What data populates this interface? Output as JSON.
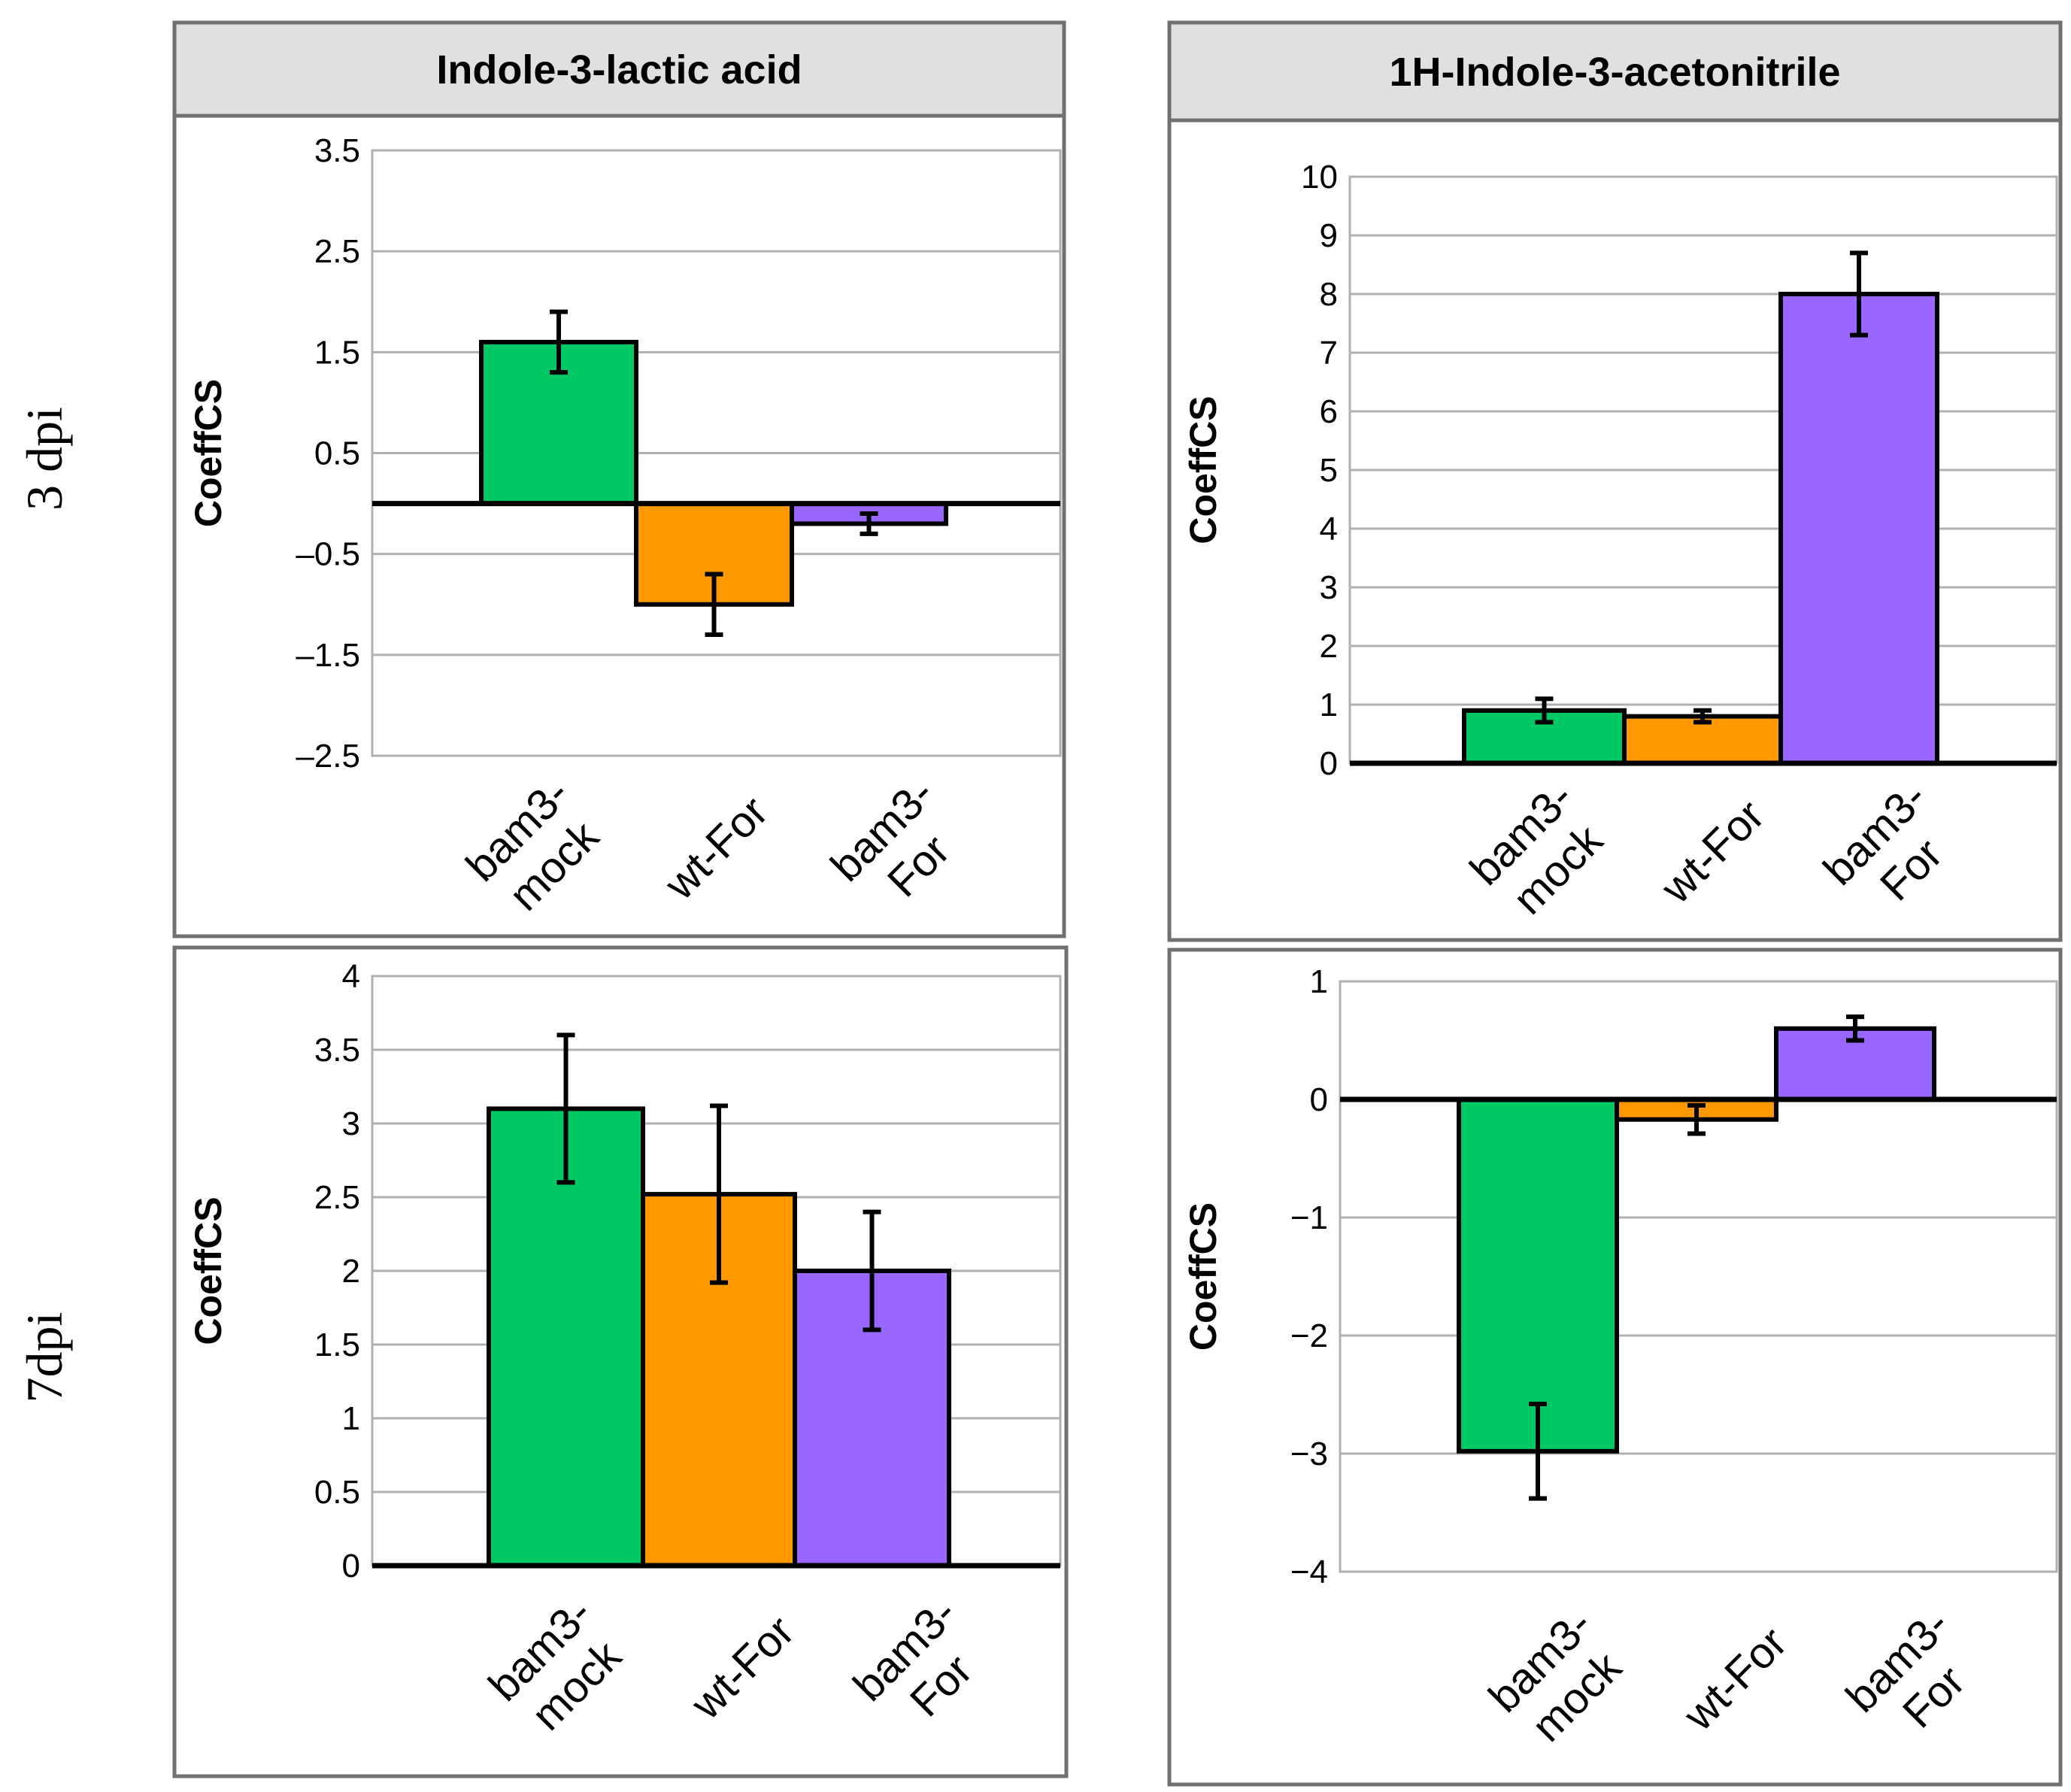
{
  "figure": {
    "row_labels": [
      "3 dpi",
      "7dpi"
    ],
    "colors": {
      "bam3-mock": "#00c864",
      "wt-For": "#ff9900",
      "bam3-For": "#9966ff",
      "grid": "#b0b0b0",
      "frame": "#707070",
      "header_bg": "#e0e0e0"
    }
  },
  "chart_data": [
    {
      "type": "bar",
      "title": "Indole-3-lactic acid",
      "row": "3 dpi",
      "categories": [
        [
          "bam3-",
          "mock"
        ],
        [
          "wt-For"
        ],
        [
          "bam3-",
          "For"
        ]
      ],
      "values": [
        1.6,
        -1.0,
        -0.2
      ],
      "errors": [
        0.3,
        0.3,
        0.1
      ],
      "ylabel": "CoeffCS",
      "ylim": [
        -2.5,
        3.5
      ],
      "yticks": [
        3.5,
        2.5,
        1.5,
        0.5,
        -0.5,
        -1.5,
        -2.5
      ],
      "ytick_labels": [
        "3.5",
        "2.5",
        "1.5",
        "0.5",
        "–0.5",
        "–1.5",
        "–2.5"
      ],
      "grid": true
    },
    {
      "type": "bar",
      "title": "1H-Indole-3-acetonitrile",
      "row": "3 dpi",
      "categories": [
        [
          "bam3-",
          "mock"
        ],
        [
          "wt-For"
        ],
        [
          "bam3-",
          "For"
        ]
      ],
      "values": [
        0.9,
        0.8,
        8.0
      ],
      "errors": [
        0.2,
        0.1,
        0.7
      ],
      "ylabel": "CoeffCS",
      "ylim": [
        0,
        10
      ],
      "yticks": [
        10,
        9,
        8,
        7,
        6,
        5,
        4,
        3,
        2,
        1,
        0
      ],
      "ytick_labels": [
        "10",
        "9",
        "8",
        "7",
        "6",
        "5",
        "4",
        "3",
        "2",
        "1",
        "0"
      ],
      "grid": true
    },
    {
      "type": "bar",
      "title": "",
      "row": "7dpi",
      "categories": [
        [
          "bam3-",
          "mock"
        ],
        [
          "wt-For"
        ],
        [
          "bam3-",
          "For"
        ]
      ],
      "values": [
        3.1,
        2.52,
        2.0
      ],
      "errors": [
        0.5,
        0.6,
        0.4
      ],
      "ylabel": "CoeffCS",
      "ylim": [
        0,
        4
      ],
      "yticks": [
        4,
        3.5,
        3,
        2.5,
        2,
        1.5,
        1,
        0.5,
        0
      ],
      "ytick_labels": [
        "4",
        "3.5",
        "3",
        "2.5",
        "2",
        "1.5",
        "1",
        "0.5",
        "0"
      ],
      "grid": true
    },
    {
      "type": "bar",
      "title": "",
      "row": "7dpi",
      "categories": [
        [
          "bam3-",
          "mock"
        ],
        [
          "wt-For"
        ],
        [
          "bam3-",
          "For"
        ]
      ],
      "values": [
        -2.98,
        -0.17,
        0.6
      ],
      "errors": [
        0.4,
        0.12,
        0.1
      ],
      "ylabel": "CoeffCS",
      "ylim": [
        -4,
        1
      ],
      "yticks": [
        1,
        0,
        -1,
        -2,
        -3,
        -4
      ],
      "ytick_labels": [
        "1",
        "0",
        "−1",
        "−2",
        "−3",
        "−4"
      ],
      "grid": true
    }
  ]
}
